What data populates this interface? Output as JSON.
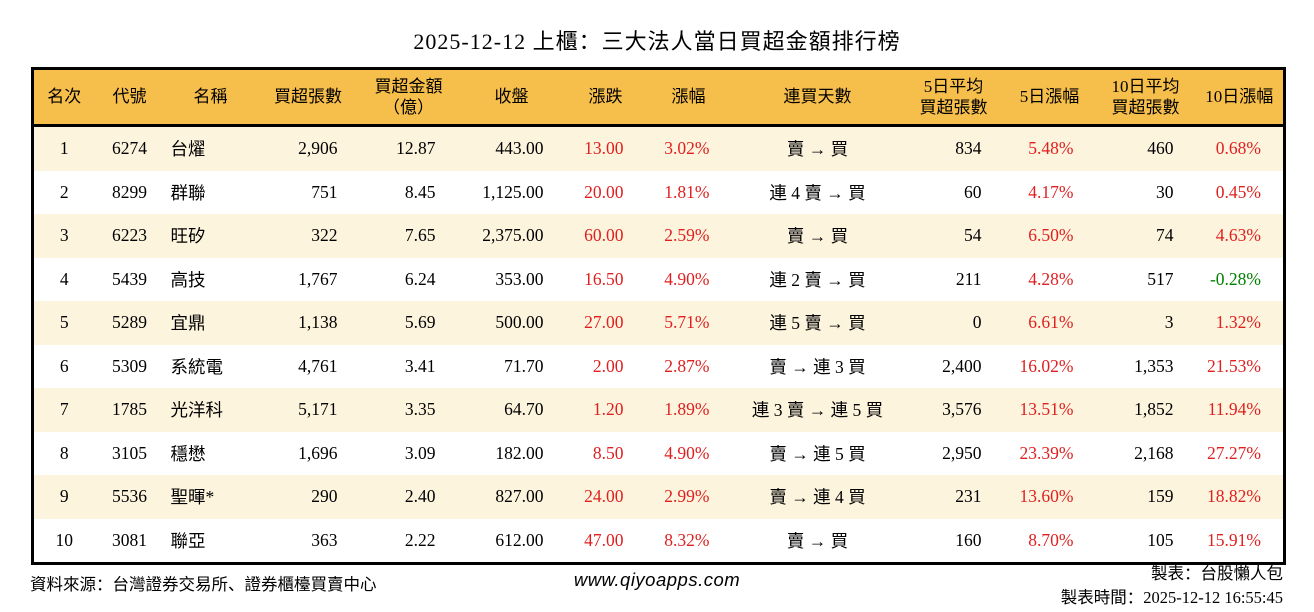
{
  "title": "2025-12-12 上櫃：三大法人當日買超金額排行榜",
  "chart_data": {
    "type": "table",
    "columns": [
      "名次",
      "代號",
      "名稱",
      "買超張數",
      "買超金額\n（億）",
      "收盤",
      "漲跌",
      "漲幅",
      "連買天數",
      "5日平均\n買超張數",
      "5日漲幅",
      "10日平均\n買超張數",
      "10日漲幅"
    ],
    "rows": [
      [
        "1",
        "6274",
        "台燿",
        "2,906",
        "12.87",
        "443.00",
        "13.00",
        "3.02%",
        "賣 → 買",
        "834",
        "5.48%",
        "460",
        "0.68%"
      ],
      [
        "2",
        "8299",
        "群聯",
        "751",
        "8.45",
        "1,125.00",
        "20.00",
        "1.81%",
        "連 4 賣 → 買",
        "60",
        "4.17%",
        "30",
        "0.45%"
      ],
      [
        "3",
        "6223",
        "旺矽",
        "322",
        "7.65",
        "2,375.00",
        "60.00",
        "2.59%",
        "賣 → 買",
        "54",
        "6.50%",
        "74",
        "4.63%"
      ],
      [
        "4",
        "5439",
        "高技",
        "1,767",
        "6.24",
        "353.00",
        "16.50",
        "4.90%",
        "連 2 賣 → 買",
        "211",
        "4.28%",
        "517",
        "-0.28%"
      ],
      [
        "5",
        "5289",
        "宜鼎",
        "1,138",
        "5.69",
        "500.00",
        "27.00",
        "5.71%",
        "連 5 賣 → 買",
        "0",
        "6.61%",
        "3",
        "1.32%"
      ],
      [
        "6",
        "5309",
        "系統電",
        "4,761",
        "3.41",
        "71.70",
        "2.00",
        "2.87%",
        "賣 → 連 3 買",
        "2,400",
        "16.02%",
        "1,353",
        "21.53%"
      ],
      [
        "7",
        "1785",
        "光洋科",
        "5,171",
        "3.35",
        "64.70",
        "1.20",
        "1.89%",
        "連 3 賣 → 連 5 買",
        "3,576",
        "13.51%",
        "1,852",
        "11.94%"
      ],
      [
        "8",
        "3105",
        "穩懋",
        "1,696",
        "3.09",
        "182.00",
        "8.50",
        "4.90%",
        "賣 → 連 5 買",
        "2,950",
        "23.39%",
        "2,168",
        "27.27%"
      ],
      [
        "9",
        "5536",
        "聖暉*",
        "290",
        "2.40",
        "827.00",
        "24.00",
        "2.99%",
        "賣 → 連 4 買",
        "231",
        "13.60%",
        "159",
        "18.82%"
      ],
      [
        "10",
        "3081",
        "聯亞",
        "363",
        "2.22",
        "612.00",
        "47.00",
        "8.32%",
        "賣 → 買",
        "160",
        "8.70%",
        "105",
        "15.91%"
      ]
    ]
  },
  "footer": {
    "source": "資料來源：台灣證券交易所、證券櫃檯買賣中心",
    "website": "www.qiyoapps.com",
    "maker": "製表：台股懶人包",
    "generated_at": "製表時間：2025-12-12 16:55:45"
  },
  "colors": {
    "header_bg": "#f6be4b",
    "row_alt_bg": "#fdf4de",
    "up_red": "#e01f1f",
    "down_green": "#008000",
    "border": "#000000"
  }
}
